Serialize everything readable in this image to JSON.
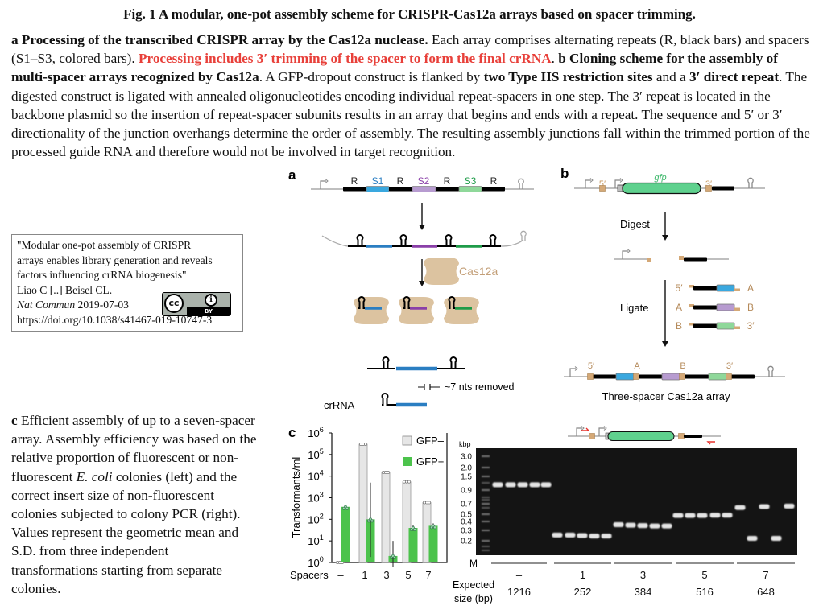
{
  "title": "Fig. 1 A modular, one-pot assembly scheme for CRISPR-Cas12a arrays based on spacer trimming.",
  "caption": {
    "s0": "a Processing of the transcribed CRISPR array by the Cas12a nuclease.",
    "s1": " Each array comprises alternating repeats (R, black bars) and spacers (S1–S3, colored bars). ",
    "s2": "Processing includes 3′ trimming of the spacer to form the final crRNA",
    "s3": ". ",
    "s4": "b Cloning scheme for the assembly of multi-spacer arrays recognized by Cas12a",
    "s5": ". A GFP-dropout construct is flanked by ",
    "s6": "two Type IIS restriction sites",
    "s7": " and a ",
    "s8": "3′ direct repeat",
    "s9": ". The digested construct is ligated with annealed oligonucleotides encoding individual repeat-spacers in one step. The 3′ repeat is located in the backbone plasmid so the insertion of repeat-spacer subunits results in an array that begins and ends with a repeat. The sequence and 5′ or 3′ directionality of the junction overhangs determine the order of assembly. The resulting assembly junctions fall within the trimmed portion of the processed guide RNA and therefore would not be involved in target recognition."
  },
  "caption_c": {
    "s0": "c",
    "s1": " Efficient assembly of up to a seven-spacer array. Assembly efficiency was based on the relative proportion of fluorescent or non-fluorescent ",
    "s2": "E. coli",
    "s3": " colonies (left) and the correct insert size of non-fluorescent colonies subjected to colony PCR (right). Values represent the geometric mean and S.D. from three independent transformations starting from separate colonies."
  },
  "citation": {
    "line1": "\"Modular one-pot assembly of CRISPR",
    "line2": "arrays enables library generation and reveals",
    "line3": "factors influencing crRNA biogenesis\"",
    "authors": "Liao C [..] Beisel  CL.",
    "journal": "Nat Commun",
    "date": " 2019-07-03",
    "doi": "https://doi.org/10.1038/s41467-019-10747-3",
    "license_badge": {
      "left": "cc",
      "right": "BY"
    }
  },
  "colors": {
    "s1": "#3aa8df",
    "s2": "#b79bd0",
    "s3": "#8fd89a",
    "s1_dark": "#2a7ec2",
    "s2_dark": "#8a3fa8",
    "s3_dark": "#1e9b48",
    "cas12a": "#dcc3a0",
    "cas12a_text": "#c39f78",
    "junction": "#c79a63",
    "gfp": "#5fd18e",
    "gfp_minus": "#e6e6e6",
    "gfp_plus": "#4cc34c",
    "primer": "#e8322c"
  },
  "panel_a": {
    "label": "a",
    "repeat_label": "R",
    "spacers": [
      "S1",
      "S2",
      "S3"
    ],
    "cas12a": "Cas12a",
    "trim_note": "~7 nts removed",
    "crrna": "crRNA"
  },
  "panel_b": {
    "label": "b",
    "gfp": "gfp",
    "five": "5′",
    "three": "3′",
    "digest": "Digest",
    "ligate": "Ligate",
    "oligos": [
      {
        "left": "5′",
        "right": "A"
      },
      {
        "left": "A",
        "right": "B"
      },
      {
        "left": "B",
        "right": "3′"
      }
    ],
    "junctions": [
      "5′",
      "A",
      "B",
      "3′"
    ],
    "result": "Three-spacer Cas12a array"
  },
  "panel_c": {
    "label": "c",
    "gel": {
      "unit": "kbp",
      "ladder": [
        "3.0",
        "2.0",
        "1.5",
        "0.9",
        "0.7",
        "0.5",
        "0.4",
        "0.3",
        "0.2"
      ],
      "marker_label": "M",
      "groups": [
        "–",
        "1",
        "3",
        "5",
        "7"
      ],
      "expected_label_1": "Expected",
      "expected_label_2": "size (bp)",
      "expected_sizes": [
        "1216",
        "252",
        "384",
        "516",
        "648"
      ],
      "band_kbp": [
        [
          1.1,
          1.1,
          1.1,
          1.1,
          1.1
        ],
        [
          0.25,
          0.25,
          0.245,
          0.24,
          0.24
        ],
        [
          0.36,
          0.355,
          0.35,
          0.345,
          0.345
        ],
        [
          0.48,
          0.48,
          0.48,
          0.485,
          0.485
        ],
        [
          0.62,
          0.22,
          0.64,
          0.22,
          0.65
        ]
      ]
    }
  },
  "chart_data": {
    "type": "bar",
    "xlabel": "Spacers",
    "ylabel": "Transformants/ml",
    "categories": [
      "–",
      "1",
      "3",
      "5",
      "7"
    ],
    "yscale": "log",
    "ylim": [
      1,
      1000000
    ],
    "yticks": [
      "10^0",
      "10^1",
      "10^2",
      "10^3",
      "10^4",
      "10^5",
      "10^6"
    ],
    "legend_position": "top-right",
    "grid": false,
    "series": [
      {
        "name": "GFP–",
        "values": [
          1,
          300000,
          15000,
          5500,
          600
        ]
      },
      {
        "name": "GFP+",
        "values": [
          380,
          100,
          2,
          40,
          50
        ],
        "error_low": [
          380,
          1.8,
          0.6,
          30,
          40
        ],
        "error_high": [
          420,
          5000,
          10,
          55,
          65
        ]
      }
    ]
  }
}
